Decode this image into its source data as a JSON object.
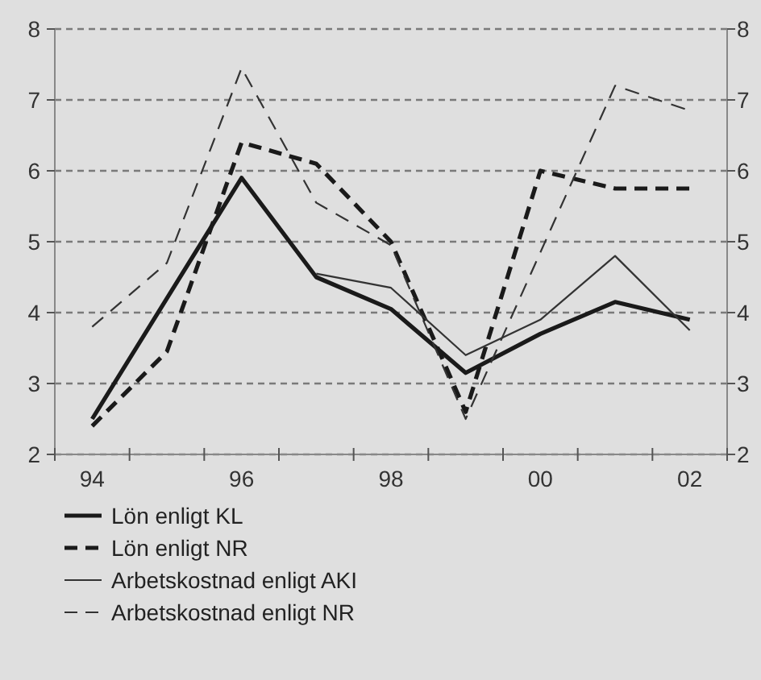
{
  "chart_data": {
    "type": "line",
    "categories": [
      "94",
      null,
      "96",
      null,
      "98",
      null,
      "00",
      null,
      "02"
    ],
    "series": [
      {
        "name": "Lön enligt KL",
        "color": "#1a1a1a",
        "line_style": "solid",
        "values": [
          2.5,
          4.2,
          5.9,
          4.5,
          4.05,
          3.15,
          3.7,
          4.15,
          3.9
        ]
      },
      {
        "name": "Lön enligt NR",
        "color": "#1a1a1a",
        "line_style": "dashed",
        "values": [
          2.4,
          3.45,
          6.4,
          6.1,
          5.0,
          2.6,
          6.0,
          5.75,
          5.75
        ]
      },
      {
        "name": "Arbetskostnad enligt AKI",
        "color": "#333333",
        "line_style": "solid",
        "values": [
          null,
          null,
          null,
          4.55,
          4.35,
          3.4,
          3.9,
          4.8,
          3.75
        ]
      },
      {
        "name": "Arbetskostnad enligt NR",
        "color": "#333333",
        "line_style": "dashed",
        "values": [
          3.8,
          4.7,
          7.45,
          5.55,
          4.95,
          2.5,
          4.85,
          7.2,
          6.85
        ]
      }
    ],
    "ylim": [
      2,
      8
    ],
    "yticks": [
      2,
      3,
      4,
      5,
      6,
      7,
      8
    ],
    "y2lim": [
      2,
      8
    ],
    "y2ticks": [
      2,
      3,
      4,
      5,
      6,
      7,
      8
    ],
    "grid": "y",
    "legend": "bottom"
  }
}
